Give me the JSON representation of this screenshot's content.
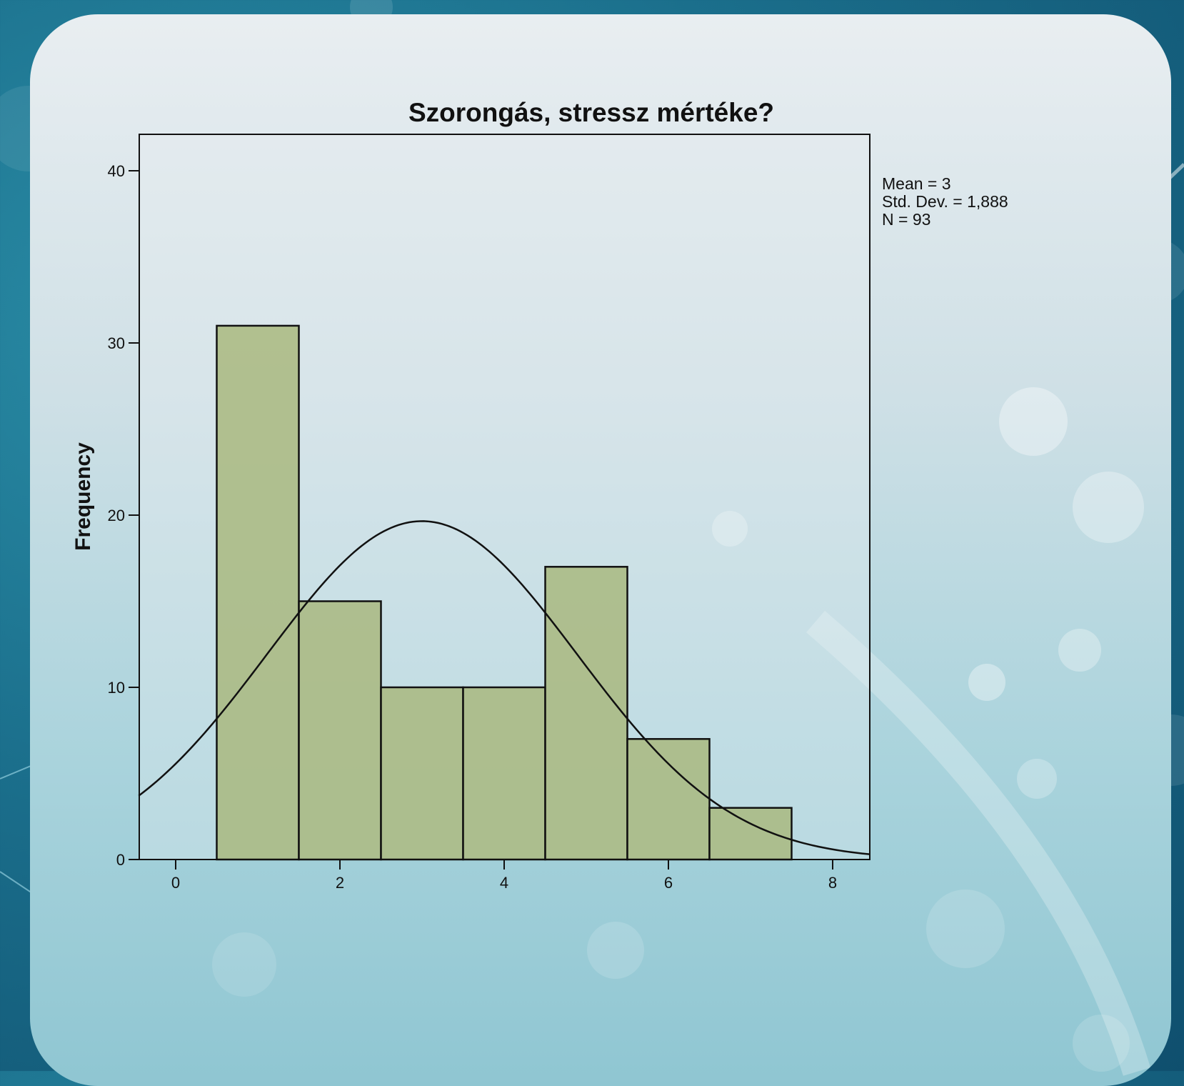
{
  "chart_data": {
    "type": "bar",
    "title": "Szorongás, stressz mértéke?",
    "xlabel": "",
    "ylabel": "Frequency",
    "categories": [
      "1",
      "2",
      "3",
      "4",
      "5",
      "6",
      "7"
    ],
    "bin_centers": [
      1,
      2,
      3,
      4,
      5,
      6,
      7
    ],
    "values": [
      31,
      15,
      10,
      10,
      17,
      7,
      3
    ],
    "xlim": [
      -0.45,
      8.45
    ],
    "ylim": [
      0,
      42
    ],
    "xticks": [
      0,
      2,
      4,
      6,
      8
    ],
    "yticks": [
      0,
      10,
      20,
      30,
      40
    ],
    "bin_width": 1,
    "normal_curve": {
      "mean": 3,
      "std_dev": 1.888,
      "n": 93
    },
    "stats": {
      "mean": "Mean = 3",
      "std_dev": "Std. Dev. = 1,888",
      "n": "N = 93"
    },
    "grid": false,
    "colors": {
      "bar_fill": "#a9b97f",
      "bar_stroke": "#111111",
      "curve": "#111111"
    }
  }
}
